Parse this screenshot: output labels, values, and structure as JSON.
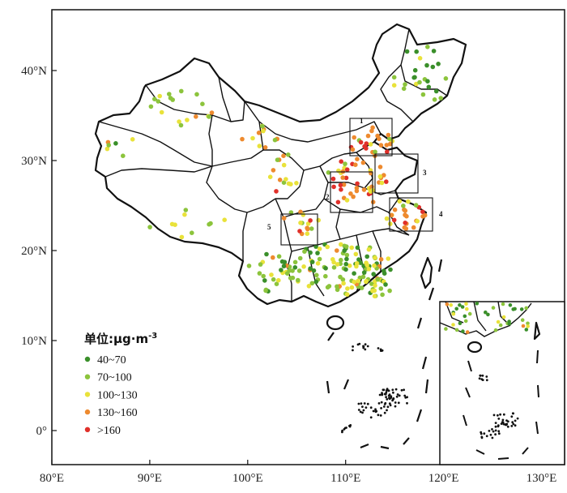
{
  "map": {
    "x_ticks": [
      {
        "value": 80,
        "label": "80°E"
      },
      {
        "value": 90,
        "label": "90°E"
      },
      {
        "value": 100,
        "label": "100°E"
      },
      {
        "value": 110,
        "label": "110°E"
      },
      {
        "value": 120,
        "label": "120°E"
      },
      {
        "value": 130,
        "label": "130°E"
      }
    ],
    "y_ticks": [
      {
        "value": 40,
        "label": "40°N"
      },
      {
        "value": 30,
        "label": "30°N"
      },
      {
        "value": 20,
        "label": "20°N"
      },
      {
        "value": 10,
        "label": "10°N"
      },
      {
        "value": 0,
        "label": "0°"
      }
    ],
    "region_boxes": [
      "1",
      "2",
      "3",
      "4",
      "5"
    ]
  },
  "legend": {
    "title": "单位:μg·m",
    "title_sup": "-3",
    "items": [
      {
        "label": "40~70",
        "color": "#3a8f2a"
      },
      {
        "label": "70~100",
        "color": "#8cc43c"
      },
      {
        "label": "100~130",
        "color": "#e9e23a"
      },
      {
        "label": "130~160",
        "color": "#ee8a2e"
      },
      {
        "label": ">160",
        "color": "#e0302a"
      }
    ]
  }
}
